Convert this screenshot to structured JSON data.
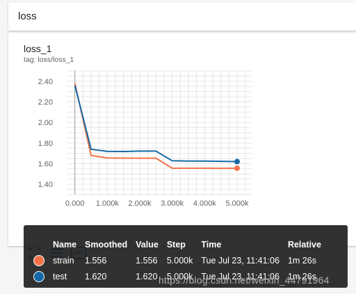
{
  "section": {
    "title": "loss"
  },
  "card": {
    "title": "loss_1",
    "tag": "tag: loss/loss_1"
  },
  "toolbar": {
    "fit_icon": "fit-domain-icon",
    "log_icon": "toggle-log-scale-icon",
    "expand_icon": "expand-chart-icon",
    "accent_color": "#1976d2"
  },
  "chart_data": {
    "type": "line",
    "title": "",
    "xlabel": "",
    "ylabel": "",
    "x_ticks": [
      "0.000",
      "1.000k",
      "2.000k",
      "3.000k",
      "4.000k",
      "5.000k"
    ],
    "y_ticks": [
      "1.40",
      "1.60",
      "1.80",
      "2.00",
      "2.20",
      "2.40"
    ],
    "xlim": [
      -250,
      5450
    ],
    "ylim": [
      1.3,
      2.5
    ],
    "grid": true,
    "series": [
      {
        "name": "strain",
        "color": "#f4734a",
        "x": [
          0,
          500,
          1000,
          1500,
          2000,
          2500,
          3000,
          3500,
          4000,
          4500,
          5000
        ],
        "y": [
          2.38,
          1.68,
          1.655,
          1.654,
          1.653,
          1.653,
          1.556,
          1.556,
          1.556,
          1.555,
          1.556
        ]
      },
      {
        "name": "test",
        "color": "#1569a6",
        "x": [
          0,
          500,
          1000,
          1500,
          2000,
          2500,
          3000,
          3500,
          4000,
          4500,
          5000
        ],
        "y": [
          2.36,
          1.74,
          1.72,
          1.718,
          1.722,
          1.722,
          1.628,
          1.625,
          1.625,
          1.623,
          1.62
        ]
      }
    ]
  },
  "tooltip": {
    "headers": {
      "name": "Name",
      "smoothed": "Smoothed",
      "value": "Value",
      "step": "Step",
      "time": "Time",
      "relative": "Relative"
    },
    "rows": [
      {
        "color": "#f4734a",
        "name": "strain",
        "smoothed": "1.556",
        "value": "1.556",
        "step": "5.000k",
        "time": "Tue Jul 23, 11:41:06",
        "relative": "1m 26s"
      },
      {
        "color": "#1569a6",
        "name": "test",
        "smoothed": "1.620",
        "value": "1.620",
        "step": "5.000k",
        "time": "Tue Jul 23, 11:41:06",
        "relative": "1m 26s"
      }
    ]
  },
  "watermark": "https://blog.csdn.net/weixin_44791964"
}
